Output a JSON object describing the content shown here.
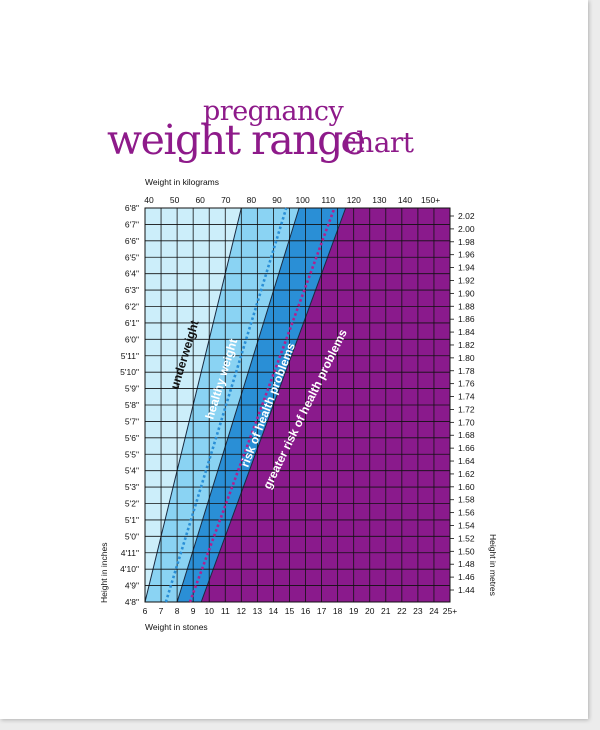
{
  "title": {
    "line1": "pregnancy",
    "line2": "weight range",
    "line3": "chart"
  },
  "chart_data": {
    "type": "area",
    "title": "pregnancy weight range chart",
    "x_top_label": "Weight in kilograms",
    "x_bottom_label": "Weight in stones",
    "y_left_label": "Height in inches",
    "y_right_label": "Height in metres",
    "kg_ticks": [
      "40",
      "50",
      "60",
      "70",
      "80",
      "90",
      "100",
      "110",
      "120",
      "130",
      "140",
      "150+"
    ],
    "stone_ticks": [
      "6",
      "7",
      "8",
      "9",
      "10",
      "11",
      "12",
      "13",
      "14",
      "15",
      "16",
      "17",
      "18",
      "19",
      "20",
      "21",
      "22",
      "23",
      "24",
      "25+"
    ],
    "stone_range": [
      6,
      25
    ],
    "height_in_ticks": [
      "4'8\"",
      "4'9\"",
      "4'10\"",
      "4'11\"",
      "5'0\"",
      "5'1\"",
      "5'2\"",
      "5'3\"",
      "5'4\"",
      "5'5\"",
      "5'6\"",
      "5'7\"",
      "5'8\"",
      "5'9\"",
      "5'10\"",
      "5'11\"",
      "6'0\"",
      "6'1\"",
      "6'2\"",
      "6'3\"",
      "6'4\"",
      "6'5\"",
      "6'6\"",
      "6'7\"",
      "6'8\""
    ],
    "height_m_ticks": [
      "1.44",
      "1.46",
      "1.48",
      "1.50",
      "1.52",
      "1.54",
      "1.56",
      "1.58",
      "1.60",
      "1.62",
      "1.64",
      "1.66",
      "1.68",
      "1.70",
      "1.72",
      "1.74",
      "1.76",
      "1.78",
      "1.80",
      "1.82",
      "1.84",
      "1.86",
      "1.88",
      "1.90",
      "1.92",
      "1.94",
      "1.96",
      "1.98",
      "2.00",
      "2.02"
    ],
    "height_range_in": [
      56,
      80
    ],
    "zones": [
      {
        "name": "underweight",
        "color": "#cceefa",
        "boundary_stones": {
          "at_4ft8": 6.0,
          "at_6ft8": 12.0
        }
      },
      {
        "name": "healthy weight",
        "color": "#8ad3f3",
        "boundary_stones": {
          "at_4ft8": 8.0,
          "at_6ft8": 15.6
        }
      },
      {
        "name": "risk of health problems",
        "color": "#2a8fd6",
        "boundary_stones": {
          "at_4ft8": 9.5,
          "at_6ft8": 18.5
        }
      },
      {
        "name": "greater risk of health problems",
        "color": "#8a1a8c",
        "boundary_stones": {
          "at_4ft8": 25.0,
          "at_6ft8": 25.0
        }
      }
    ],
    "dashed_lines": [
      {
        "color": "#2a8fd6",
        "stones": {
          "at_4ft8": 7.3,
          "at_6ft8": 14.8
        }
      },
      {
        "color": "#b0208f",
        "stones": {
          "at_4ft8": 8.8,
          "at_6ft8": 17.8
        }
      }
    ],
    "grid": true
  }
}
